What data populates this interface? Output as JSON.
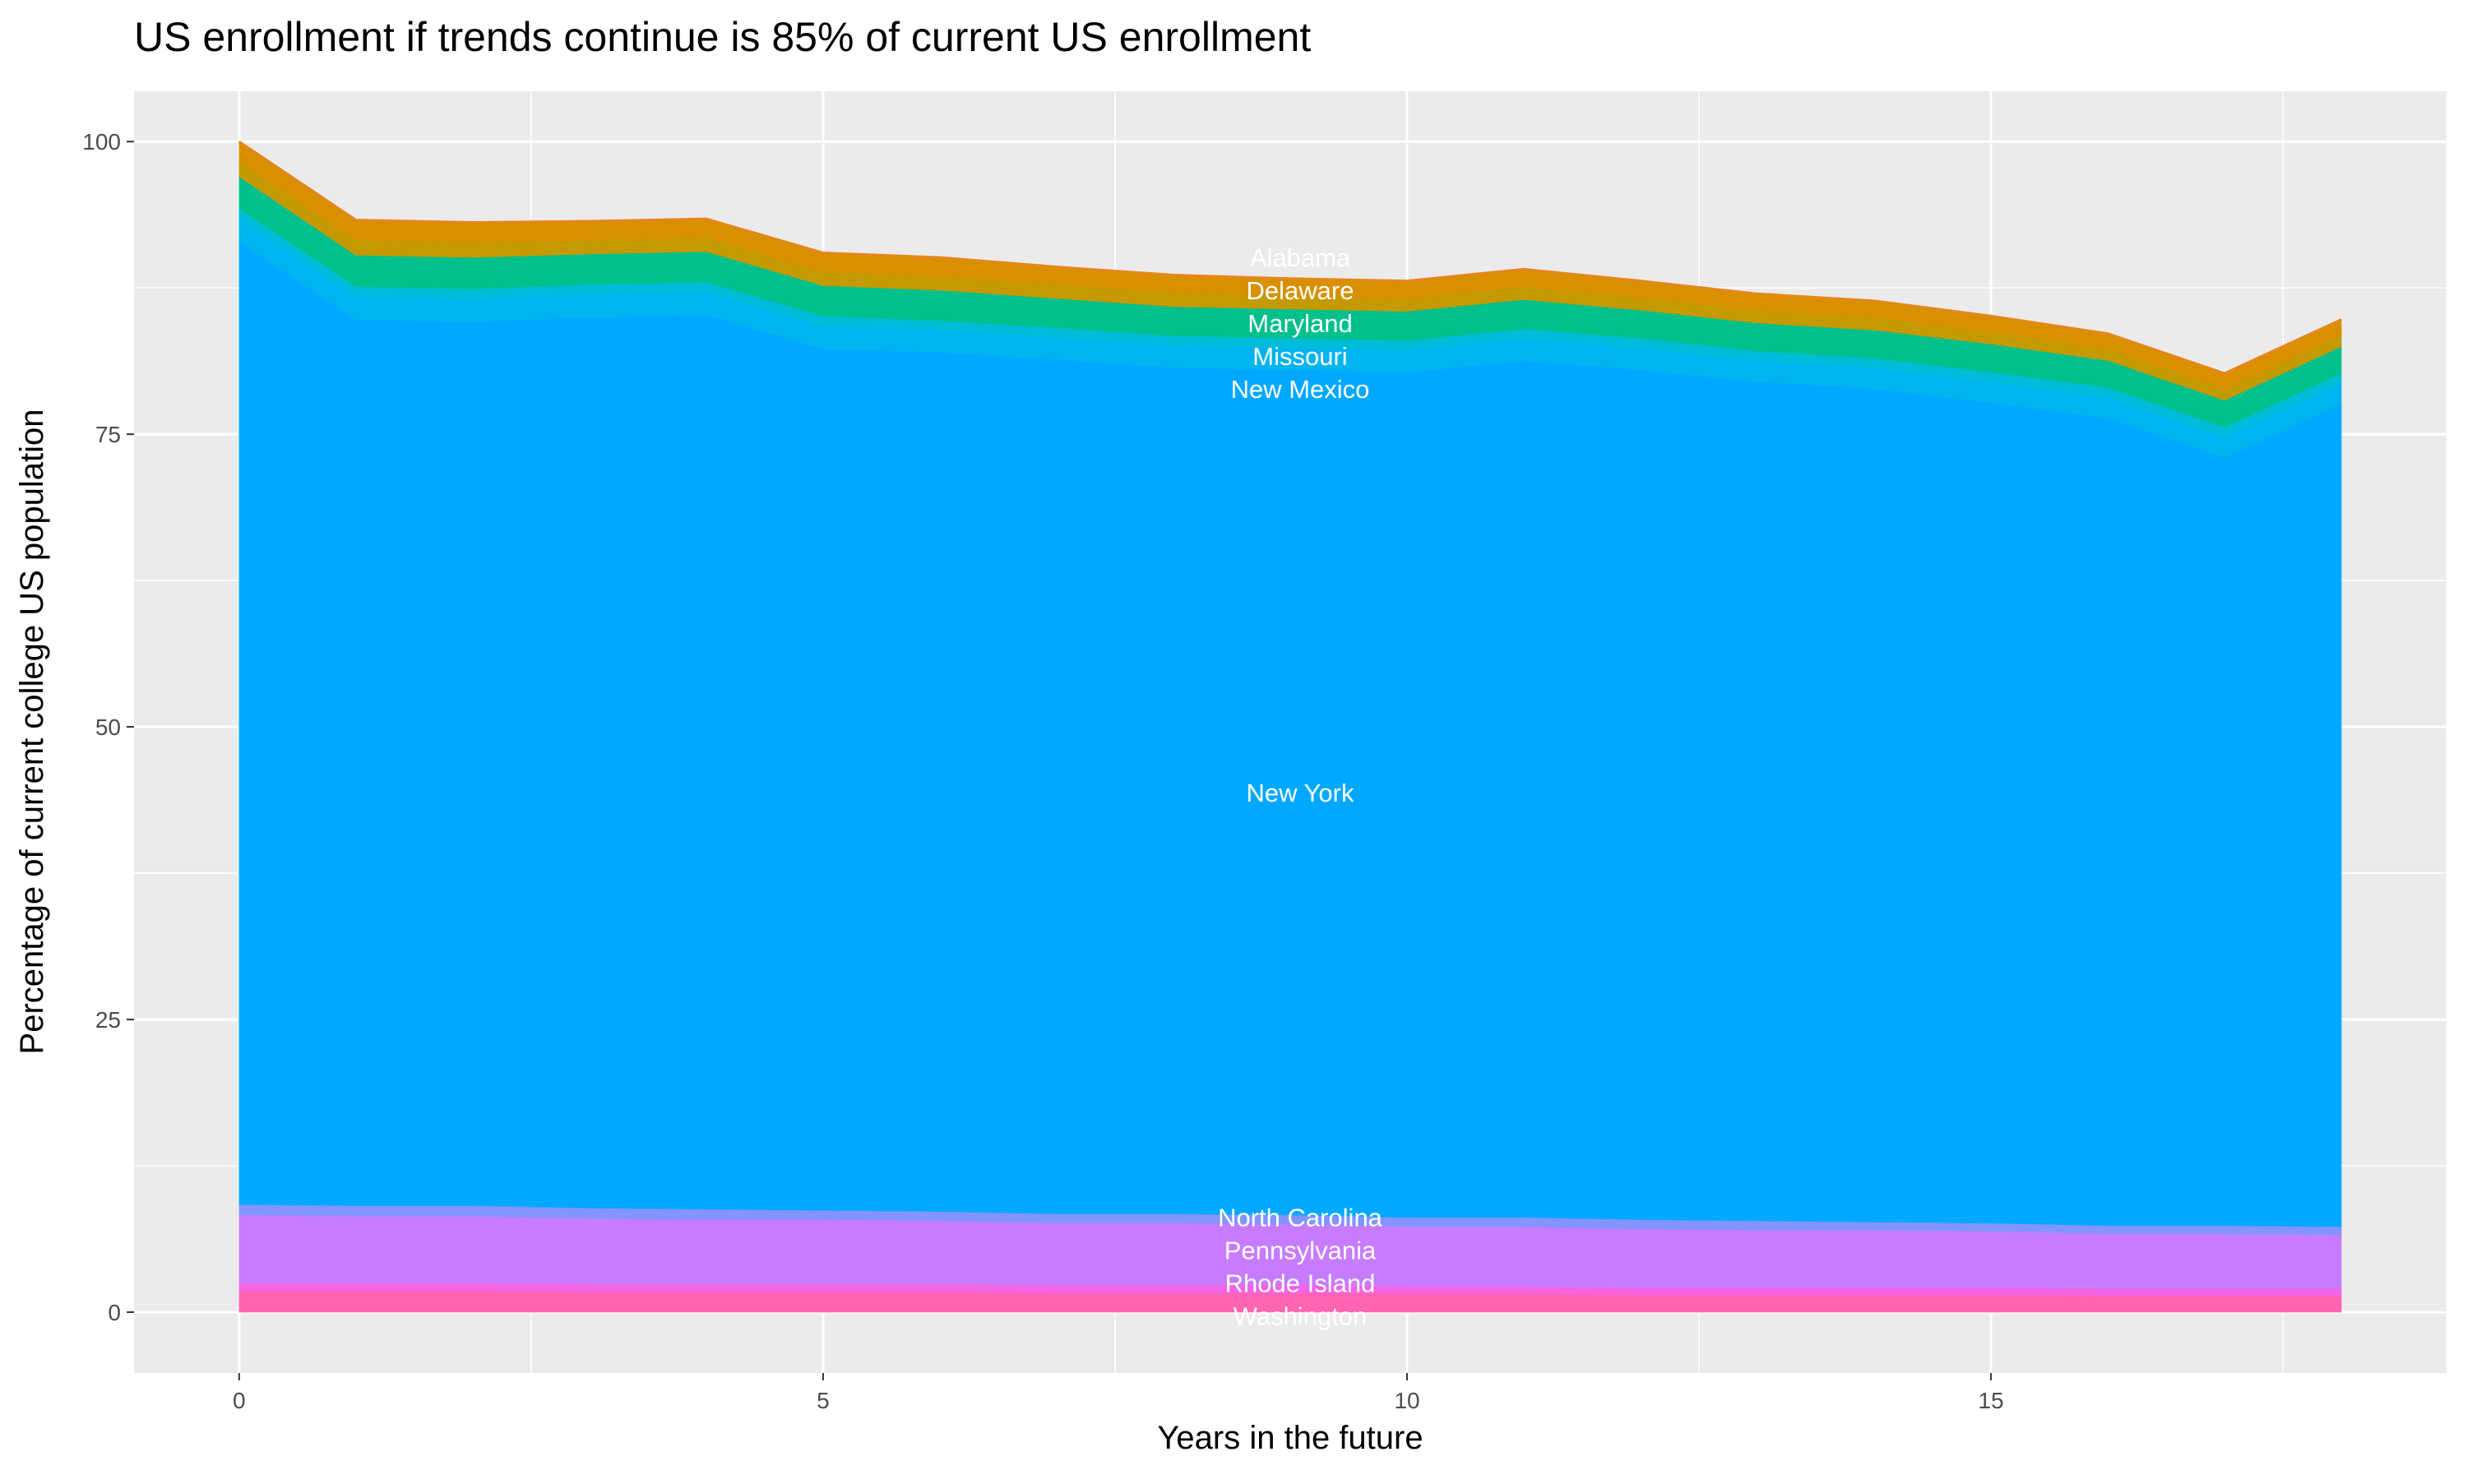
{
  "chart_data": {
    "type": "area",
    "stacked": true,
    "title": "US enrollment if trends continue is 85% of current US enrollment",
    "xlabel": "Years in the future",
    "ylabel": "Percentage of current college US population",
    "xlim": [
      -0.9,
      18.9
    ],
    "ylim": [
      -5.2,
      104.3
    ],
    "x_ticks": [
      0,
      5,
      10,
      15
    ],
    "y_ticks": [
      0,
      25,
      50,
      75,
      100
    ],
    "grid": true,
    "legend": "none",
    "label_x": 9,
    "x": [
      0,
      1,
      2,
      3,
      4,
      5,
      6,
      7,
      8,
      9,
      10,
      11,
      12,
      13,
      14,
      15,
      16,
      17,
      18
    ],
    "series": [
      {
        "name": "Washington",
        "color": "#FF64B0",
        "values": [
          1.8,
          1.8,
          1.8,
          1.7,
          1.7,
          1.7,
          1.7,
          1.6,
          1.6,
          1.6,
          1.6,
          1.6,
          1.5,
          1.5,
          1.5,
          1.5,
          1.4,
          1.4,
          1.4
        ]
      },
      {
        "name": "Rhode Island",
        "color": "#F564E3",
        "values": [
          0.7,
          0.7,
          0.7,
          0.7,
          0.7,
          0.7,
          0.7,
          0.7,
          0.7,
          0.7,
          0.6,
          0.6,
          0.6,
          0.6,
          0.6,
          0.6,
          0.6,
          0.6,
          0.6
        ]
      },
      {
        "name": "Pennsylvania",
        "color": "#C77CFF",
        "values": [
          5.8,
          5.7,
          5.7,
          5.6,
          5.5,
          5.5,
          5.4,
          5.3,
          5.3,
          5.2,
          5.1,
          5.1,
          5.0,
          4.9,
          4.9,
          4.8,
          4.7,
          4.7,
          4.6
        ]
      },
      {
        "name": "North Carolina",
        "color": "#8494FF",
        "values": [
          0.9,
          0.9,
          0.9,
          0.9,
          0.9,
          0.8,
          0.8,
          0.8,
          0.8,
          0.8,
          0.8,
          0.8,
          0.8,
          0.8,
          0.7,
          0.7,
          0.7,
          0.7,
          0.7
        ]
      },
      {
        "name": "New York",
        "color": "#00A9FF",
        "values": [
          82.3,
          75.7,
          75.5,
          76.1,
          76.4,
          73.6,
          73.4,
          73.0,
          72.3,
          72.2,
          72.2,
          73.2,
          72.6,
          71.7,
          71.2,
          70.1,
          69.0,
          65.6,
          70.3
        ]
      },
      {
        "name": "New Mexico",
        "color": "#00B4F0",
        "values": [
          2.0,
          2.0,
          2.0,
          2.0,
          2.0,
          2.0,
          1.9,
          1.9,
          1.9,
          1.9,
          1.9,
          1.9,
          1.9,
          1.8,
          1.8,
          1.8,
          1.8,
          1.8,
          1.8
        ]
      },
      {
        "name": "Missouri",
        "color": "#00BCD8",
        "values": [
          0.8,
          0.8,
          0.8,
          0.8,
          0.8,
          0.8,
          0.8,
          0.8,
          0.8,
          0.8,
          0.8,
          0.8,
          0.8,
          0.8,
          0.8,
          0.8,
          0.8,
          0.8,
          0.8
        ]
      },
      {
        "name": "Maryland",
        "color": "#00C08B",
        "values": [
          2.7,
          2.7,
          2.7,
          2.6,
          2.6,
          2.6,
          2.6,
          2.5,
          2.5,
          2.5,
          2.5,
          2.5,
          2.4,
          2.4,
          2.4,
          2.4,
          2.3,
          2.3,
          2.3
        ]
      },
      {
        "name": "Delaware",
        "color": "#C59900",
        "values": [
          1.3,
          1.3,
          1.3,
          1.2,
          1.2,
          1.2,
          1.2,
          1.2,
          1.2,
          1.1,
          1.1,
          1.1,
          1.1,
          1.1,
          1.1,
          1.0,
          1.0,
          1.0,
          1.0
        ]
      },
      {
        "name": "Alabama",
        "color": "#D89000",
        "values": [
          1.7,
          1.7,
          1.7,
          1.6,
          1.6,
          1.6,
          1.6,
          1.5,
          1.5,
          1.5,
          1.5,
          1.5,
          1.4,
          1.4,
          1.4,
          1.4,
          1.3,
          1.3,
          1.3
        ]
      }
    ],
    "top_edge_color": "#E7861B",
    "panel_background": "#EBEBEB"
  }
}
